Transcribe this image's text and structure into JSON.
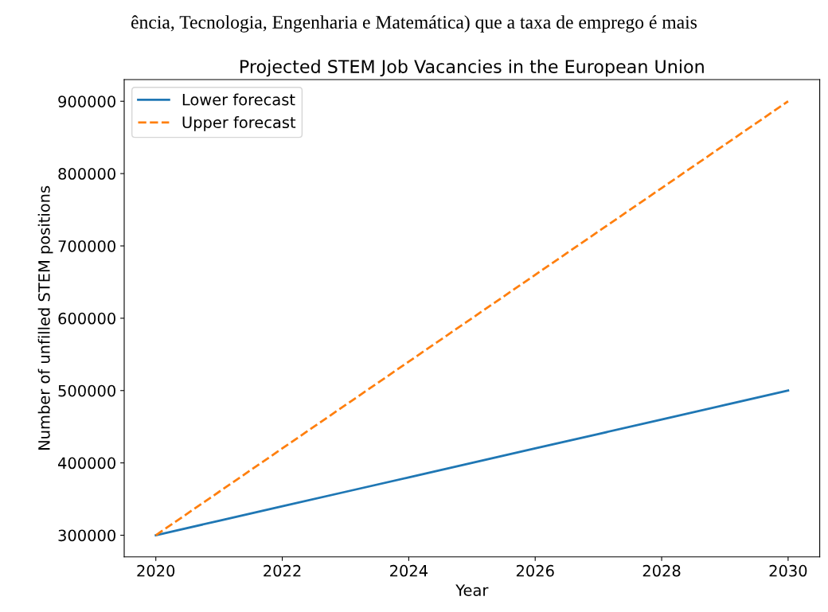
{
  "chart_data": {
    "type": "line",
    "title": "Projected STEM Job Vacancies in the European Union",
    "annotations": [
      "ência, Tecnologia, Engenharia e Matemática) que a taxa de emprego é mais"
    ],
    "xlabel": "Year",
    "ylabel": "Number of unfilled STEM positions",
    "x": [
      2020,
      2021,
      2022,
      2023,
      2024,
      2025,
      2026,
      2027,
      2028,
      2029,
      2030
    ],
    "series": [
      {
        "name": "Lower forecast",
        "color": "#1f77b4",
        "line_style": "solid",
        "values": [
          300000,
          320000,
          340000,
          360000,
          380000,
          400000,
          420000,
          440000,
          460000,
          480000,
          500000
        ]
      },
      {
        "name": "Upper forecast",
        "color": "#ff7f0e",
        "line_style": "dashed",
        "values": [
          300000,
          360000,
          420000,
          480000,
          540000,
          600000,
          660000,
          720000,
          780000,
          840000,
          900000
        ]
      }
    ],
    "xlim": [
      2019.5,
      2030.5
    ],
    "xticks": [
      2020,
      2022,
      2024,
      2026,
      2028,
      2030
    ],
    "ylim": [
      270000,
      930000
    ],
    "yticks": [
      300000,
      400000,
      500000,
      600000,
      700000,
      800000,
      900000
    ],
    "grid": false,
    "legend": "top left"
  }
}
